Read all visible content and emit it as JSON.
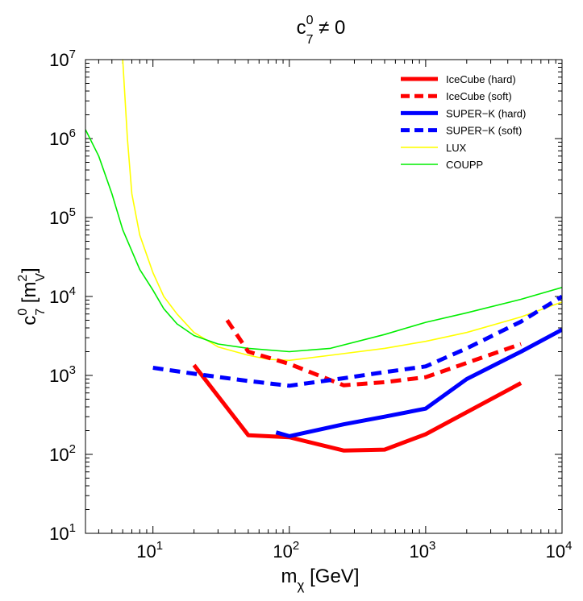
{
  "chart_data": {
    "type": "line",
    "title": {
      "base": "c",
      "sup": "0",
      "sub": "7",
      "rest": " ≠ 0"
    },
    "xlabel": {
      "base": "m",
      "sub": "χ",
      "rest": " [GeV]"
    },
    "ylabel": {
      "base": "c",
      "sup": "0",
      "sub": "7",
      "mid": " [m",
      "sup2": "2",
      "sub2": "V",
      "end": "]"
    },
    "xscale": "log",
    "yscale": "log",
    "xlim": [
      3.2,
      10000
    ],
    "ylim": [
      10,
      10000000
    ],
    "x_ticks": [
      {
        "value": 10,
        "base": "10",
        "exp": "1"
      },
      {
        "value": 100,
        "base": "10",
        "exp": "2"
      },
      {
        "value": 1000,
        "base": "10",
        "exp": "3"
      },
      {
        "value": 10000,
        "base": "10",
        "exp": "4"
      }
    ],
    "y_ticks": [
      {
        "value": 10,
        "base": "10",
        "exp": "1"
      },
      {
        "value": 100,
        "base": "10",
        "exp": "2"
      },
      {
        "value": 1000,
        "base": "10",
        "exp": "3"
      },
      {
        "value": 10000,
        "base": "10",
        "exp": "4"
      },
      {
        "value": 100000,
        "base": "10",
        "exp": "5"
      },
      {
        "value": 1000000,
        "base": "10",
        "exp": "6"
      },
      {
        "value": 10000000,
        "base": "10",
        "exp": "7"
      }
    ],
    "legend_position": "top-right",
    "series": [
      {
        "name": "IceCube (hard)",
        "color": "#ff0000",
        "style": "solid",
        "weight": "thick",
        "x": [
          20,
          50,
          100,
          250,
          500,
          1000,
          5000
        ],
        "y": [
          1350,
          175,
          165,
          112,
          115,
          180,
          800
        ]
      },
      {
        "name": "IceCube (soft)",
        "color": "#ff0000",
        "style": "dashed",
        "weight": "thick",
        "x": [
          35,
          50,
          100,
          250,
          500,
          1000,
          5000
        ],
        "y": [
          5000,
          2000,
          1400,
          750,
          820,
          950,
          2500
        ]
      },
      {
        "name": "SUPER−K (hard)",
        "color": "#0000ff",
        "style": "solid",
        "weight": "thick",
        "x": [
          80,
          100,
          250,
          500,
          1000,
          2000,
          5000,
          10000
        ],
        "y": [
          190,
          170,
          240,
          300,
          380,
          900,
          2000,
          3800
        ]
      },
      {
        "name": "SUPER−K (soft)",
        "color": "#0000ff",
        "style": "dashed",
        "weight": "thick",
        "x": [
          10,
          20,
          50,
          100,
          250,
          500,
          1000,
          2000,
          5000,
          10000
        ],
        "y": [
          1250,
          1050,
          850,
          740,
          920,
          1100,
          1300,
          2200,
          4800,
          10000
        ]
      },
      {
        "name": "LUX",
        "color": "#ffff00",
        "style": "solid",
        "weight": "thin",
        "x": [
          6,
          6.5,
          7,
          8,
          10,
          12,
          15,
          20,
          30,
          50,
          70,
          100,
          200,
          500,
          1000,
          2000,
          5000,
          10000
        ],
        "y": [
          10000000,
          1000000,
          200000,
          60000,
          20000,
          10000,
          6000,
          3500,
          2300,
          1800,
          1600,
          1550,
          1800,
          2200,
          2700,
          3500,
          5500,
          8500
        ]
      },
      {
        "name": "COUPP",
        "color": "#00ee00",
        "style": "solid",
        "weight": "thin",
        "x": [
          3.2,
          4,
          5,
          6,
          8,
          10,
          12,
          15,
          20,
          30,
          50,
          100,
          200,
          500,
          1000,
          2000,
          5000,
          10000
        ],
        "y": [
          1300000,
          600000,
          200000,
          70000,
          22000,
          12000,
          7000,
          4500,
          3200,
          2500,
          2200,
          2000,
          2200,
          3300,
          4700,
          6200,
          9200,
          13000
        ]
      }
    ]
  }
}
